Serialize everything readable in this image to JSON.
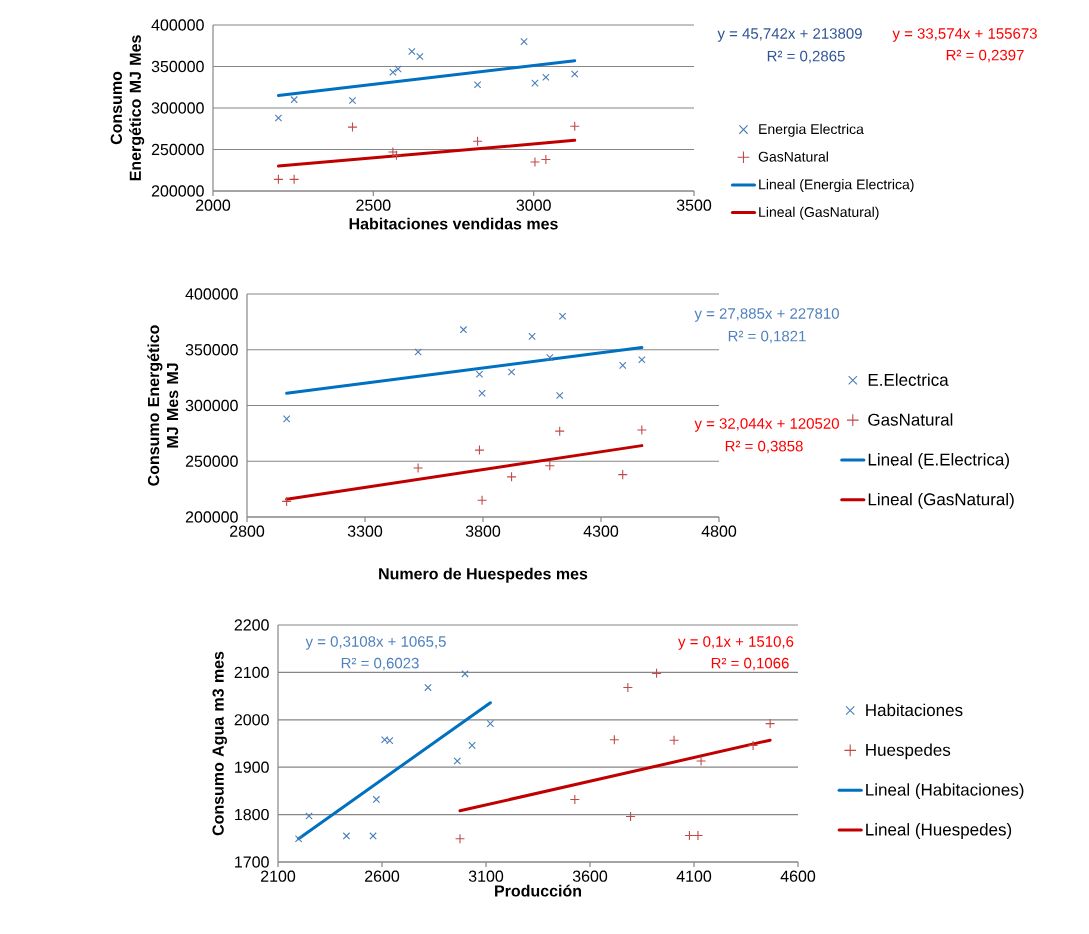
{
  "chart_data": [
    {
      "type": "scatter",
      "xlabel": "Habitaciones vendidas mes",
      "ylabel": "Consumo Energético MJ Mes",
      "xlim": [
        2000,
        3500
      ],
      "xticks": [
        2000,
        2500,
        3000,
        3500
      ],
      "ylim": [
        200000,
        400000
      ],
      "yticks": [
        200000,
        250000,
        300000,
        350000,
        400000
      ],
      "grid": "y",
      "legend": "right",
      "annotations": [
        "y = 45,742x + 213809",
        "R² = 0,2865",
        "y = 33,574x + 155673",
        "R² = 0,2397"
      ],
      "series": [
        {
          "name": "Energia Electrica",
          "color": "#4a7ebb",
          "marker": "cross",
          "x": [
            2204,
            2253,
            2435,
            2561,
            2577,
            2620,
            2645,
            2825,
            2970,
            3004,
            3038,
            3128
          ],
          "values": [
            288000,
            310000,
            309000,
            343000,
            347000,
            368000,
            362000,
            328000,
            380000,
            330000,
            337000,
            341000
          ]
        },
        {
          "name": "GasNatural",
          "color": "#be4b48",
          "marker": "plus",
          "x": [
            2204,
            2253,
            2435,
            2561,
            2572,
            2825,
            3004,
            3038,
            3128
          ],
          "values": [
            214000,
            214000,
            277000,
            247000,
            243000,
            260000,
            235000,
            238000,
            278000
          ]
        },
        {
          "name": "Lineal (Energia Electrica)",
          "type": "line",
          "color": "#0070c0",
          "marker": "none",
          "x": [
            2204,
            3128
          ],
          "values": [
            315000,
            357000
          ]
        },
        {
          "name": "Lineal (GasNatural)",
          "type": "line",
          "color": "#c00000",
          "marker": "none",
          "x": [
            2204,
            3128
          ],
          "values": [
            230000,
            261000
          ]
        }
      ]
    },
    {
      "type": "scatter",
      "xlabel": "Numero de Huespedes mes",
      "ylabel": "Consumo Energético MJ Mes MJ",
      "xlim": [
        2800,
        4800
      ],
      "xticks": [
        2800,
        3300,
        3800,
        4300,
        4800
      ],
      "ylim": [
        200000,
        400000
      ],
      "yticks": [
        200000,
        250000,
        300000,
        350000,
        400000
      ],
      "grid": "y",
      "legend": "right",
      "annotations": [
        "y = 27,885x + 227810",
        "R² = 0,1821",
        "y = 32,044x + 120520",
        "R² = 0,3858"
      ],
      "series": [
        {
          "name": "E.Electrica",
          "color": "#4a7ebb",
          "marker": "cross",
          "x": [
            2968,
            3525,
            3717,
            3785,
            3796,
            3921,
            4008,
            4083,
            4125,
            4137,
            4392,
            4473
          ],
          "values": [
            288000,
            348000,
            368000,
            328000,
            311000,
            330000,
            362000,
            343000,
            309000,
            380000,
            336000,
            341000
          ]
        },
        {
          "name": "GasNatural",
          "color": "#be4b48",
          "marker": "plus",
          "x": [
            2968,
            3525,
            3785,
            3796,
            3921,
            4083,
            4125,
            4392,
            4473
          ],
          "values": [
            214000,
            244000,
            260000,
            215000,
            236000,
            246000,
            277000,
            238000,
            278000
          ]
        },
        {
          "name": "Lineal (E.Electrica)",
          "type": "line",
          "color": "#0070c0",
          "marker": "none",
          "x": [
            2968,
            4473
          ],
          "values": [
            311000,
            352000
          ]
        },
        {
          "name": "Lineal (GasNatural)",
          "type": "line",
          "color": "#c00000",
          "marker": "none",
          "x": [
            2968,
            4473
          ],
          "values": [
            216000,
            264000
          ]
        }
      ]
    },
    {
      "type": "scatter",
      "xlabel": "Producción",
      "ylabel": "Consumo Agua m3 mes",
      "xlim": [
        2100,
        4600
      ],
      "xticks": [
        2100,
        2600,
        3100,
        3600,
        4100,
        4600
      ],
      "ylim": [
        1700,
        2200
      ],
      "yticks": [
        1700,
        1800,
        1900,
        2000,
        2100,
        2200
      ],
      "grid": "y",
      "legend": "right",
      "annotations": [
        "y = 0,3108x + 1065,5",
        "R² = 0,6023",
        "y = 0,1x + 1510,6",
        "R² = 0,1066"
      ],
      "series": [
        {
          "name": "Habitaciones",
          "color": "#4a7ebb",
          "marker": "cross",
          "x": [
            2199,
            2249,
            2429,
            2557,
            2573,
            2613,
            2637,
            2821,
            2962,
            2999,
            3033,
            3121
          ],
          "values": [
            1749,
            1797,
            1755,
            1755,
            1832,
            1958,
            1956,
            2068,
            1913,
            2097,
            1946,
            1992
          ]
        },
        {
          "name": "Huespedes",
          "color": "#be4b48",
          "marker": "plus",
          "x": [
            2975,
            3527,
            3717,
            3782,
            3795,
            3920,
            4004,
            4078,
            4119,
            4134,
            4384,
            4466
          ],
          "values": [
            1749,
            1832,
            1958,
            2068,
            1796,
            2098,
            1957,
            1756,
            1756,
            1913,
            1946,
            1992
          ]
        },
        {
          "name": "Lineal (Habitaciones)",
          "type": "line",
          "color": "#0070c0",
          "marker": "none",
          "x": [
            2199,
            3121
          ],
          "values": [
            1749,
            2036
          ]
        },
        {
          "name": "Lineal (Huespedes)",
          "type": "line",
          "color": "#c00000",
          "marker": "none",
          "x": [
            2975,
            4466
          ],
          "values": [
            1808,
            1957
          ]
        }
      ]
    }
  ]
}
